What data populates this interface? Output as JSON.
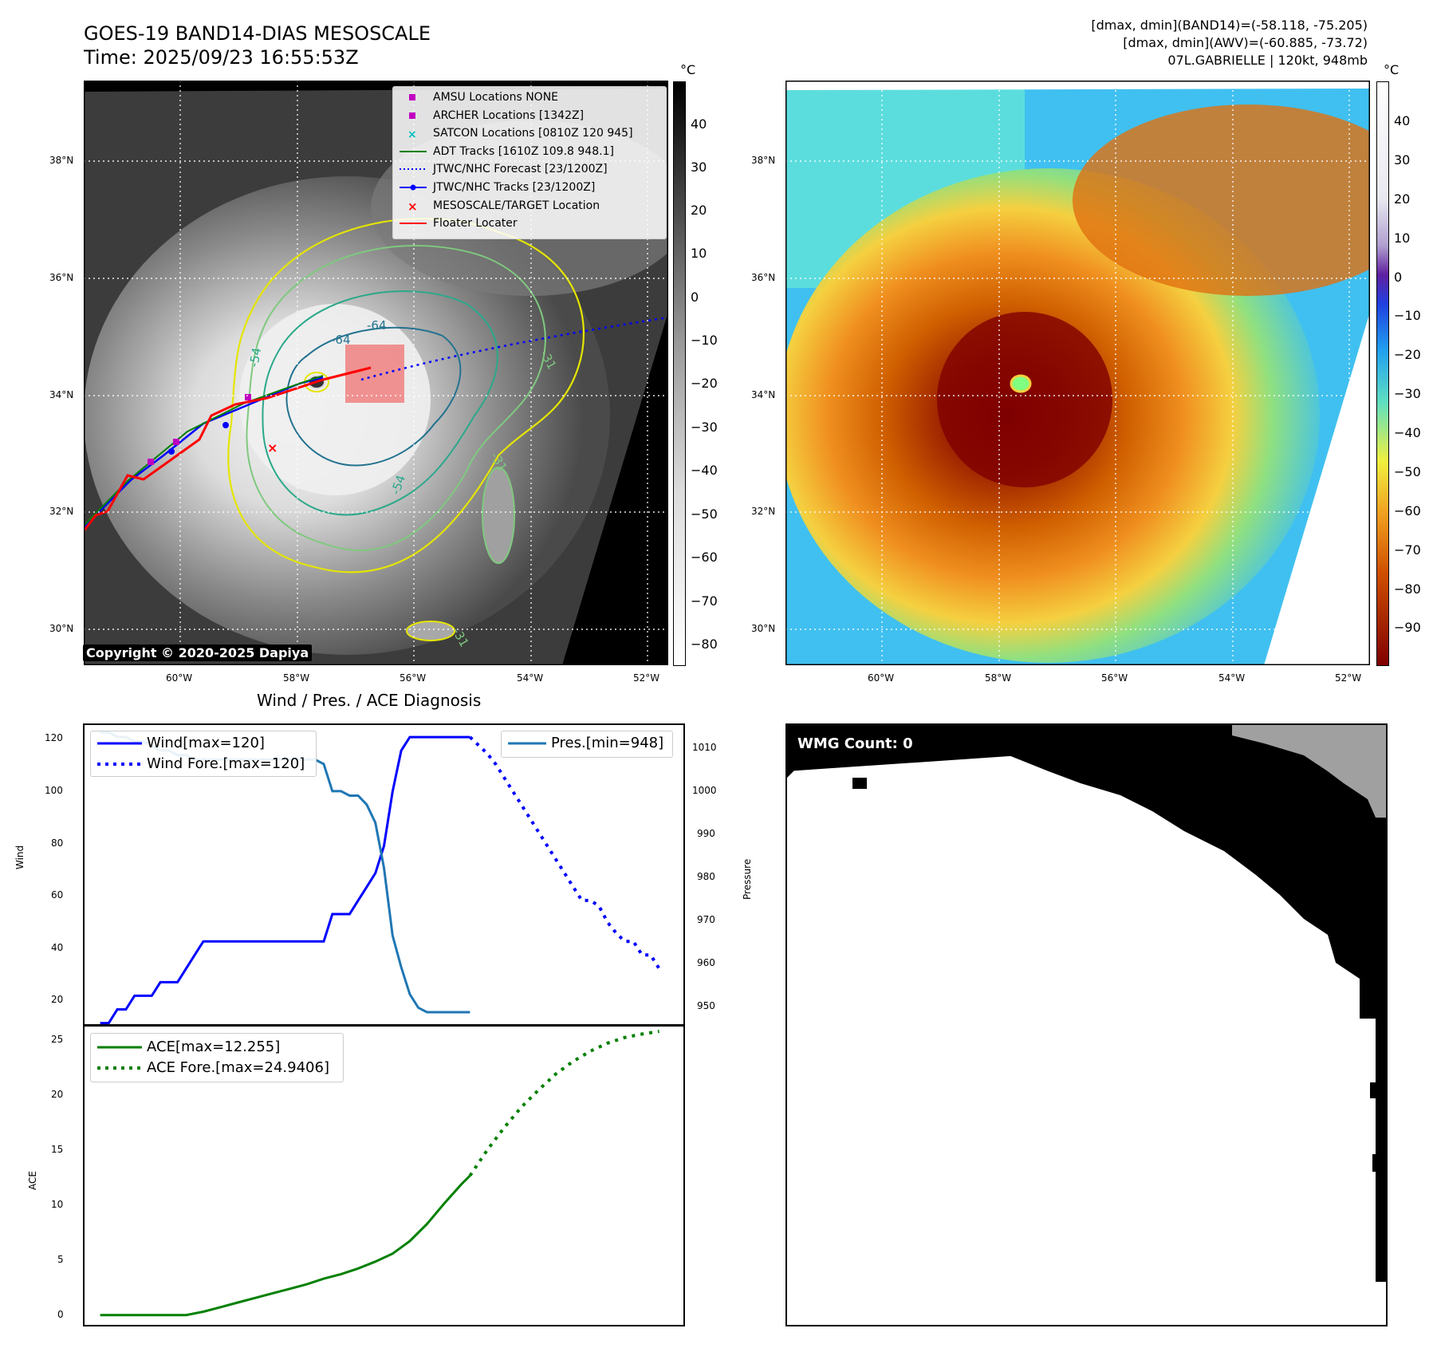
{
  "header": {
    "title_line1": "GOES-19 BAND14-DIAS MESOSCALE",
    "title_line2": "Time: 2025/09/23 16:55:53Z",
    "info_line1": "[dmax, dmin](BAND14)=(-58.118, -75.205)",
    "info_line2": "[dmax, dmin](AWV)=(-60.885, -73.72)",
    "info_line3": "07L.GABRIELLE | 120kt, 948mb"
  },
  "map_left": {
    "unit": "°C",
    "copyright": "Copyright © 2020-2025 Dapiya",
    "legend": [
      {
        "label": "AMSU Locations NONE",
        "symbol": "square",
        "color": "#c000c0"
      },
      {
        "label": "ARCHER Locations [1342Z]",
        "symbol": "square",
        "color": "#c000c0"
      },
      {
        "label": "SATCON Locations [0810Z 120 945]",
        "symbol": "x",
        "color": "#00bfbf"
      },
      {
        "label": "ADT Tracks [1610Z 109.8 948.1]",
        "symbol": "line",
        "color": "#008000"
      },
      {
        "label": "JTWC/NHC Forecast [23/1200Z]",
        "symbol": "dotted",
        "color": "#0000ff"
      },
      {
        "label": "JTWC/NHC Tracks [23/1200Z]",
        "symbol": "line-dot",
        "color": "#0000ff"
      },
      {
        "label": "MESOSCALE/TARGET Location",
        "symbol": "x",
        "color": "#ff0000"
      },
      {
        "label": "Floater Locater",
        "symbol": "line",
        "color": "#ff0000"
      }
    ],
    "contour_labels": [
      "-64",
      "-64",
      "-54",
      "-54",
      "-31",
      "-31",
      "-31"
    ],
    "colorbar_ticks": [
      "40",
      "30",
      "20",
      "10",
      "0",
      "−10",
      "−20",
      "−30",
      "−40",
      "−50",
      "−60",
      "−70",
      "−80"
    ]
  },
  "map_right": {
    "unit": "°C",
    "colorbar_ticks": [
      "40",
      "30",
      "20",
      "10",
      "0",
      "−10",
      "−20",
      "−30",
      "−40",
      "−50",
      "−60",
      "−70",
      "−80",
      "−90"
    ]
  },
  "map_axes": {
    "lat_labels": [
      "38°N",
      "36°N",
      "34°N",
      "32°N",
      "30°N"
    ],
    "lon_labels": [
      "60°W",
      "58°W",
      "56°W",
      "54°W",
      "52°W"
    ]
  },
  "diag": {
    "title": "Wind / Pres. / ACE Diagnosis",
    "wind_ylabel": "Wind",
    "pres_ylabel": "Pressure",
    "ace_ylabel": "ACE",
    "wind_ticks": [
      "120",
      "100",
      "80",
      "60",
      "40",
      "20"
    ],
    "pres_ticks": [
      "1010",
      "1000",
      "990",
      "980",
      "970",
      "960",
      "950"
    ],
    "ace_ticks": [
      "25",
      "20",
      "15",
      "10",
      "5",
      "0"
    ],
    "legend_wind": "Wind[max=120]",
    "legend_wind_fore": "Wind Fore.[max=120]",
    "legend_pres": "Pres.[min=948]",
    "legend_ace": "ACE[max=12.255]",
    "legend_ace_fore": "ACE Fore.[max=24.9406]"
  },
  "wmg": {
    "label": "WMG Count: 0"
  },
  "chart_data": [
    {
      "type": "line",
      "title": "Wind / Pres. / ACE Diagnosis",
      "ylabel": "Wind",
      "ylim": [
        14,
        125
      ],
      "y2label": "Pressure",
      "y2lim": [
        945,
        1012
      ],
      "series": [
        {
          "name": "Wind[max=120]",
          "axis": "left",
          "color": "#0000ff",
          "style": "solid",
          "x": [
            0,
            1,
            2,
            3,
            4,
            5,
            6,
            7,
            8,
            9,
            10,
            11,
            12,
            13,
            14,
            15,
            16,
            17,
            18,
            19,
            20,
            21,
            22,
            23,
            24,
            25,
            26,
            27,
            28,
            29,
            30,
            31,
            32,
            33,
            34,
            35,
            36,
            37,
            38,
            39,
            40,
            41,
            42,
            43
          ],
          "y": [
            15,
            15,
            20,
            20,
            25,
            25,
            25,
            30,
            30,
            30,
            35,
            40,
            45,
            45,
            45,
            45,
            45,
            45,
            45,
            45,
            45,
            45,
            45,
            45,
            45,
            45,
            45,
            55,
            55,
            55,
            60,
            65,
            70,
            80,
            100,
            115,
            120,
            120,
            120,
            120,
            120,
            120,
            120,
            120
          ]
        },
        {
          "name": "Wind Fore.[max=120]",
          "axis": "left",
          "color": "#0000ff",
          "style": "dotted",
          "x": [
            43,
            44,
            45,
            46,
            47,
            48,
            49,
            50,
            51,
            52,
            53,
            54,
            55,
            56,
            57,
            58,
            59,
            60,
            61,
            62,
            63,
            64,
            65
          ],
          "y": [
            120,
            117,
            114,
            110,
            105,
            100,
            95,
            90,
            85,
            80,
            75,
            70,
            65,
            60,
            60,
            58,
            52,
            48,
            45,
            45,
            40,
            40,
            35
          ]
        },
        {
          "name": "Pres.[min=948]",
          "axis": "right",
          "color": "#1f77b4",
          "style": "solid",
          "x": [
            0,
            1,
            2,
            3,
            4,
            5,
            6,
            7,
            8,
            9,
            10,
            11,
            12,
            13,
            14,
            15,
            16,
            17,
            18,
            19,
            20,
            21,
            22,
            23,
            24,
            25,
            26,
            27,
            28,
            29,
            30,
            31,
            32,
            33,
            34,
            35,
            36,
            37,
            38,
            39,
            40,
            41,
            42,
            43
          ],
          "y": [
            1010,
            1010,
            1009,
            1009,
            1008,
            1008,
            1007,
            1006,
            1006,
            1005,
            1005,
            1004,
            1004,
            1004,
            1004,
            1004,
            1004,
            1004,
            1004,
            1004,
            1004,
            1004,
            1004,
            1004,
            1004,
            1004,
            1003,
            997,
            997,
            996,
            996,
            994,
            990,
            980,
            965,
            958,
            952,
            949,
            948,
            948,
            948,
            948,
            948,
            948
          ]
        }
      ]
    },
    {
      "type": "line",
      "ylabel": "ACE",
      "ylim": [
        -1,
        25.5
      ],
      "series": [
        {
          "name": "ACE[max=12.255]",
          "color": "#008000",
          "style": "solid",
          "x": [
            0,
            2,
            4,
            6,
            8,
            10,
            12,
            14,
            16,
            18,
            20,
            22,
            24,
            26,
            28,
            30,
            32,
            34,
            36,
            38,
            40,
            42,
            43
          ],
          "y": [
            0,
            0,
            0,
            0,
            0,
            0,
            0.3,
            0.7,
            1.1,
            1.5,
            1.9,
            2.3,
            2.7,
            3.2,
            3.6,
            4.1,
            4.7,
            5.4,
            6.5,
            8.0,
            9.8,
            11.5,
            12.255
          ]
        },
        {
          "name": "ACE Fore.[max=24.9406]",
          "color": "#008000",
          "style": "dotted",
          "x": [
            43,
            45,
            47,
            49,
            51,
            53,
            55,
            57,
            59,
            61,
            63,
            65
          ],
          "y": [
            12.255,
            14.5,
            16.5,
            18.3,
            19.8,
            21.2,
            22.3,
            23.2,
            23.9,
            24.4,
            24.7,
            24.94
          ]
        }
      ]
    }
  ]
}
